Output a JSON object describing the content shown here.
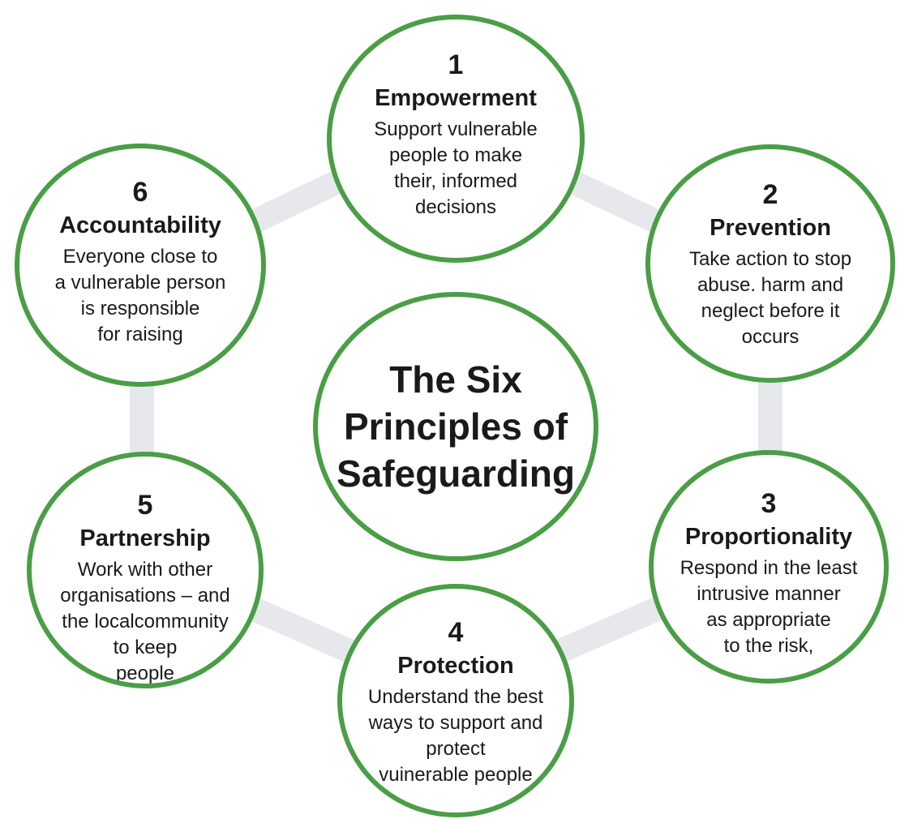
{
  "title": "The Six\nPrinciples of\nSafeguarding",
  "colors": {
    "circle_border": "#4a9e45",
    "ring": "#e6e8ec",
    "text": "#1a1a1a"
  },
  "principles": [
    {
      "number": "1",
      "name": "Empowerment",
      "description": "Support vulnerable\npeople to make\ntheir, informed\ndecisions"
    },
    {
      "number": "2",
      "name": "Prevention",
      "description": "Take action to stop\nabuse. harm and\nneglect before it\noccurs"
    },
    {
      "number": "3",
      "name": "Proportionality",
      "description": "Respond in the least\nintrusive manner\nas appropriate\nto the risk,"
    },
    {
      "number": "4",
      "name": "Protection",
      "description": "Understand the best\nways to support and\nprotect\nvuinerable people"
    },
    {
      "number": "5",
      "name": "Partnership",
      "description": "Work with other\norganisations – and\nthe localcommunity\nto keep\npeople"
    },
    {
      "number": "6",
      "name": "Accountability",
      "description": "Everyone close to\na vulnerable person\nis responsible\nfor raising"
    }
  ]
}
